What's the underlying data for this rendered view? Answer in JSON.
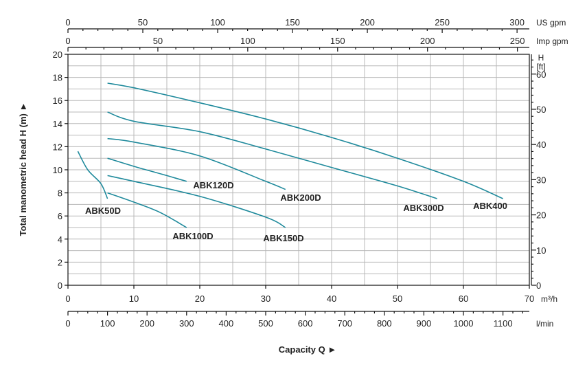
{
  "chart_data": {
    "type": "line",
    "xlabel": "Capacity Q ►",
    "ylabel": "Total manometric head H (m) ►",
    "x_unit": "m³/h",
    "y_right_label": "H",
    "y_right_unit": "[ft]",
    "xlim": [
      0,
      70
    ],
    "ylim": [
      0,
      20
    ],
    "grid": true,
    "x_ticks": [
      0,
      10,
      20,
      30,
      40,
      50,
      60,
      70
    ],
    "y_ticks": [
      0,
      2,
      4,
      6,
      8,
      10,
      12,
      14,
      16,
      18,
      20
    ],
    "right_ticks": {
      "unit": "ft",
      "values": [
        0,
        10,
        20,
        30,
        40,
        50,
        60
      ]
    },
    "secondary_x_axes": [
      {
        "unit": "US gpm",
        "ticks": [
          0,
          50,
          100,
          150,
          200,
          250,
          300
        ]
      },
      {
        "unit": "Imp gpm",
        "ticks": [
          0,
          50,
          100,
          150,
          200,
          250
        ]
      },
      {
        "unit": "l/min",
        "ticks": [
          0,
          100,
          200,
          300,
          400,
          500,
          600,
          700,
          800,
          900,
          1000,
          1100
        ]
      }
    ],
    "series": [
      {
        "name": "ABK50D",
        "x": [
          1.5,
          3,
          5,
          6
        ],
        "y": [
          11.6,
          10.0,
          8.8,
          7.5
        ]
      },
      {
        "name": "ABK100D",
        "x": [
          6,
          10,
          14,
          18
        ],
        "y": [
          8.0,
          7.2,
          6.3,
          5.0
        ]
      },
      {
        "name": "ABK120D",
        "x": [
          6,
          10,
          15,
          18
        ],
        "y": [
          11.0,
          10.3,
          9.5,
          9.0
        ]
      },
      {
        "name": "ABK150D",
        "x": [
          6,
          10,
          20,
          30,
          33
        ],
        "y": [
          9.5,
          9.0,
          7.7,
          5.9,
          5.0
        ]
      },
      {
        "name": "ABK200D",
        "x": [
          6,
          10,
          20,
          30,
          33
        ],
        "y": [
          12.7,
          12.4,
          11.2,
          9.0,
          8.3
        ]
      },
      {
        "name": "ABK300D",
        "x": [
          6,
          10,
          20,
          30,
          40,
          50,
          56
        ],
        "y": [
          15.0,
          14.2,
          13.3,
          11.8,
          10.2,
          8.6,
          7.5
        ]
      },
      {
        "name": "ABK400",
        "x": [
          6,
          10,
          20,
          30,
          40,
          50,
          60,
          66
        ],
        "y": [
          17.5,
          17.1,
          15.8,
          14.4,
          12.8,
          11.0,
          9.0,
          7.5
        ]
      }
    ],
    "series_label_offsets": {
      "ABK50D": [
        5,
        300
      ],
      "ABK100D": [
        0,
        0
      ],
      "ABK120D": [
        0,
        0
      ]
    }
  }
}
